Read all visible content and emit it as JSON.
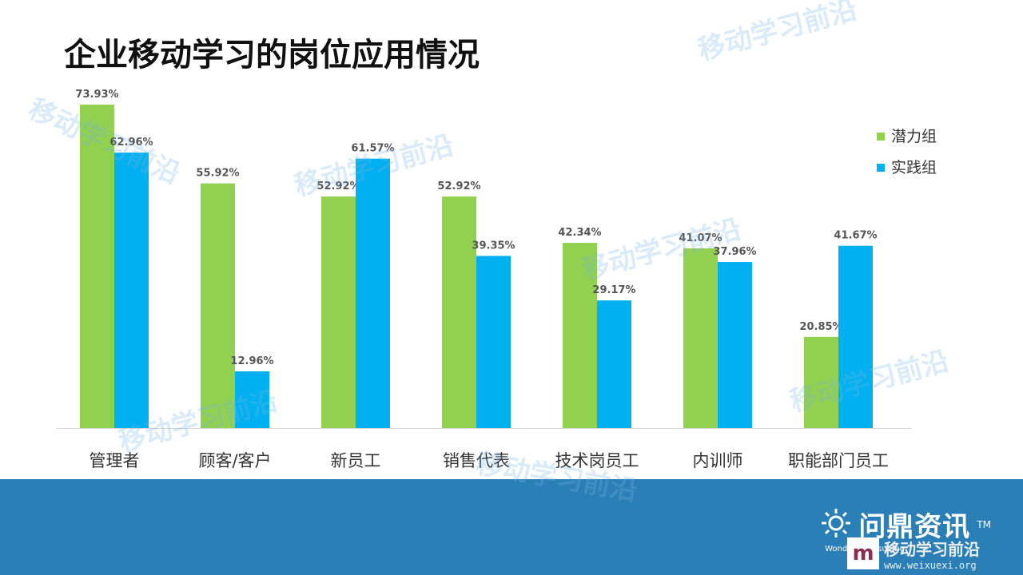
{
  "slide": {
    "title": "企业移动学习的岗位应用情况"
  },
  "chart_data": {
    "type": "bar",
    "categories": [
      "管理者",
      "顾客/客户",
      "新员工",
      "销售代表",
      "技术岗员工",
      "内训师",
      "职能部门员工"
    ],
    "series": [
      {
        "name": "潜力组",
        "color": "#92d050",
        "values": [
          73.93,
          55.92,
          52.92,
          52.92,
          42.34,
          41.07,
          20.85
        ],
        "labels": [
          "73.93%",
          "55.92%",
          "52.92%",
          "52.92%",
          "42.34%",
          "41.07%",
          "20.85%"
        ]
      },
      {
        "name": "实践组",
        "color": "#00b0f0",
        "values": [
          62.96,
          12.96,
          61.57,
          39.35,
          29.17,
          37.96,
          41.67
        ],
        "labels": [
          "62.96%",
          "12.96%",
          "61.57%",
          "39.35%",
          "29.17%",
          "37.96%",
          "41.67%"
        ]
      }
    ],
    "ylim": [
      0,
      73.93
    ],
    "legend_position": "top-right",
    "grid": false
  },
  "footer": {
    "brand_name": "问鼎资讯",
    "brand_tm": "TM",
    "brand_en": "Wonding Consulting",
    "band_color": "#2a7fb6"
  },
  "watermarks": {
    "text": "移动学习前沿",
    "logo_text": "移动学习前沿",
    "logo_url": "www.weixuexi.org"
  }
}
